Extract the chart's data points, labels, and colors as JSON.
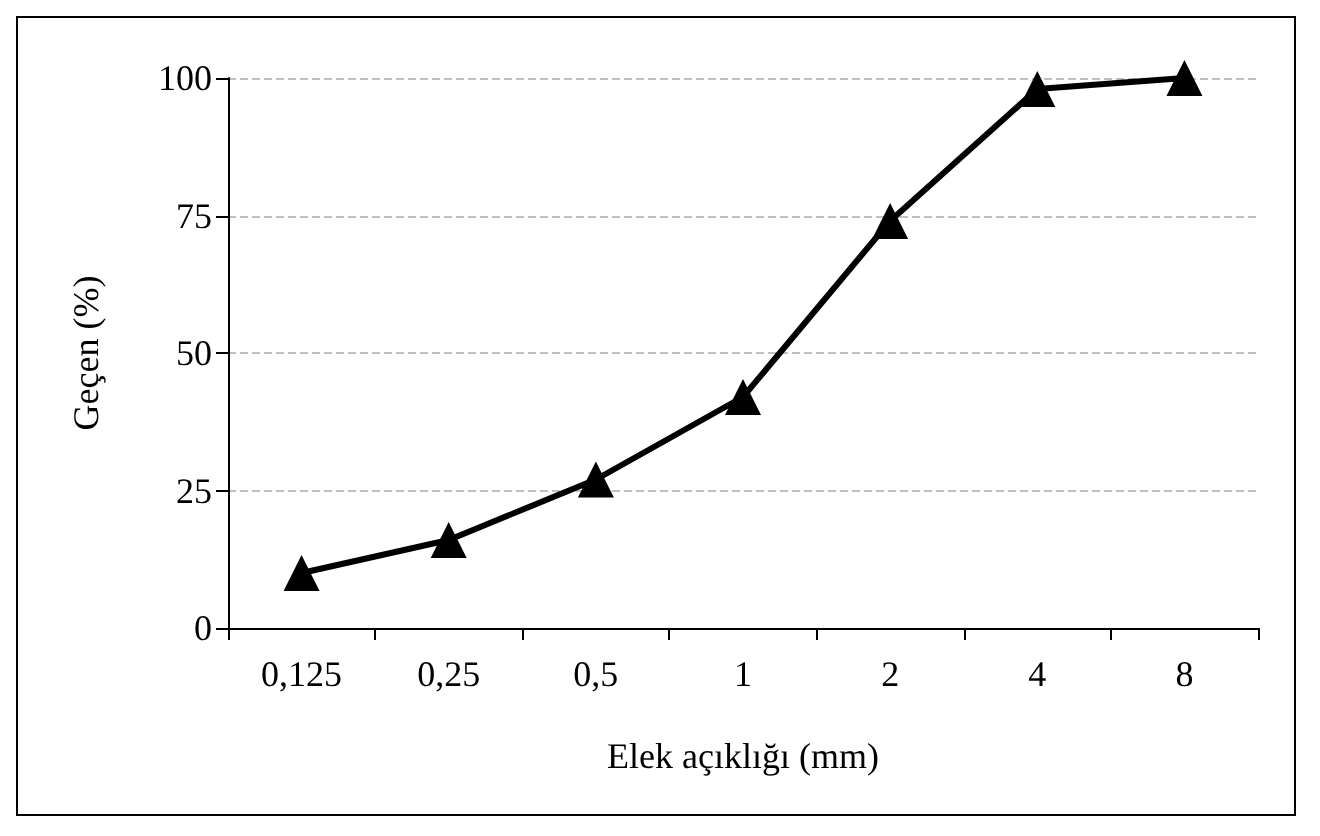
{
  "chart_data": {
    "type": "line",
    "xlabel": "Elek açıklığı (mm)",
    "ylabel": "Geçen (%)",
    "categories": [
      "0,125",
      "0,25",
      "0,5",
      "1",
      "2",
      "4",
      "8"
    ],
    "series": [
      {
        "color": "#000000",
        "values": [
          10,
          16,
          27,
          42,
          74,
          98,
          100
        ]
      }
    ],
    "ylim": [
      0,
      100
    ],
    "yticks": [
      0,
      25,
      50,
      75,
      100
    ],
    "grid": "y",
    "marker": "triangle",
    "line_style": "solid"
  }
}
